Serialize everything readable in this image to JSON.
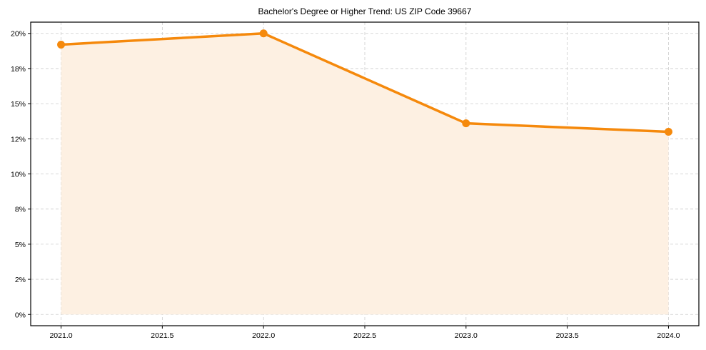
{
  "chart_data": {
    "type": "line",
    "title": "Bachelor's Degree or Higher Trend: US ZIP Code 39667",
    "xlabel": "",
    "ylabel": "",
    "x": [
      2021,
      2022,
      2023,
      2024
    ],
    "series": [
      {
        "name": "Bachelor's Degree or Higher",
        "values": [
          19.2,
          20.0,
          13.6,
          13.0
        ],
        "unit": "%",
        "color": "#f5890c",
        "fill_color": "#fdf0e2",
        "markers": true
      }
    ],
    "xlim": [
      2020.85,
      2024.15
    ],
    "ylim": [
      -0.8,
      20.8
    ],
    "x_ticks": [
      2021.0,
      2021.5,
      2022.0,
      2022.5,
      2023.0,
      2023.5,
      2024.0
    ],
    "x_tick_labels": [
      "2021.0",
      "2021.5",
      "2022.0",
      "2022.5",
      "2023.0",
      "2023.5",
      "2024.0"
    ],
    "y_ticks": [
      0,
      2.5,
      5,
      7.5,
      10,
      12.5,
      15,
      17.5,
      20
    ],
    "y_tick_labels": [
      "0%",
      "2%",
      "5%",
      "8%",
      "10%",
      "12%",
      "15%",
      "18%",
      "20%"
    ],
    "grid": true,
    "grid_style": "dashed",
    "legend": false
  }
}
